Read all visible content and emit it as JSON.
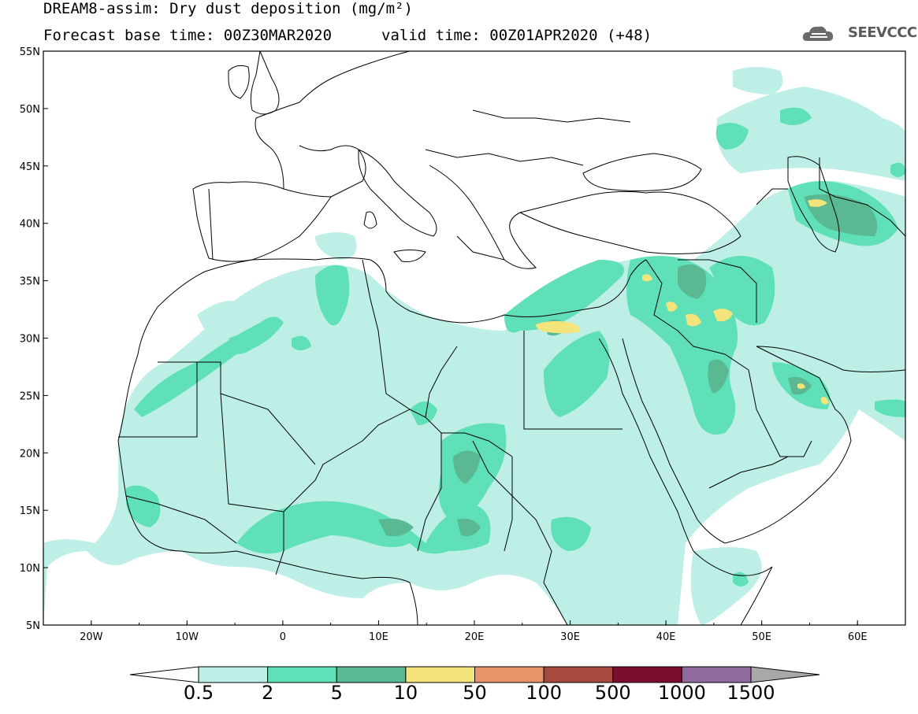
{
  "header": {
    "title_line1": "DREAM8-assim: Dry dust deposition (mg/m²)",
    "title_line2": "Forecast base time: 00Z30MAR2020",
    "valid_time": "valid time: 00Z01APR2020 (+48)",
    "logo_text": "SEEVCCC",
    "logo_icon": "cloud-icon"
  },
  "map": {
    "lon_range": [
      -25,
      65
    ],
    "lat_range": [
      5,
      55
    ],
    "lon_ticks": [
      {
        "value": -20,
        "label": "20W"
      },
      {
        "value": -10,
        "label": "10W"
      },
      {
        "value": 0,
        "label": "0"
      },
      {
        "value": 10,
        "label": "10E"
      },
      {
        "value": 20,
        "label": "20E"
      },
      {
        "value": 30,
        "label": "30E"
      },
      {
        "value": 40,
        "label": "40E"
      },
      {
        "value": 50,
        "label": "50E"
      },
      {
        "value": 60,
        "label": "60E"
      }
    ],
    "lat_ticks": [
      {
        "value": 55,
        "label": "55N"
      },
      {
        "value": 50,
        "label": "50N"
      },
      {
        "value": 45,
        "label": "45N"
      },
      {
        "value": 40,
        "label": "40N"
      },
      {
        "value": 35,
        "label": "35N"
      },
      {
        "value": 30,
        "label": "30N"
      },
      {
        "value": 25,
        "label": "25N"
      },
      {
        "value": 20,
        "label": "20N"
      },
      {
        "value": 15,
        "label": "15N"
      },
      {
        "value": 10,
        "label": "10N"
      },
      {
        "value": 5,
        "label": "5N"
      }
    ]
  },
  "colorbar": {
    "levels": [
      "0.5",
      "2",
      "5",
      "10",
      "50",
      "100",
      "500",
      "1000",
      "1500"
    ],
    "colors": [
      "#bdefe6",
      "#5fe0b8",
      "#5ab993",
      "#f3e47b",
      "#e8946a",
      "#a54a3d",
      "#7c0d2c",
      "#8e6a9d",
      "#a8a8a8"
    ],
    "under_color": "#ffffff"
  }
}
